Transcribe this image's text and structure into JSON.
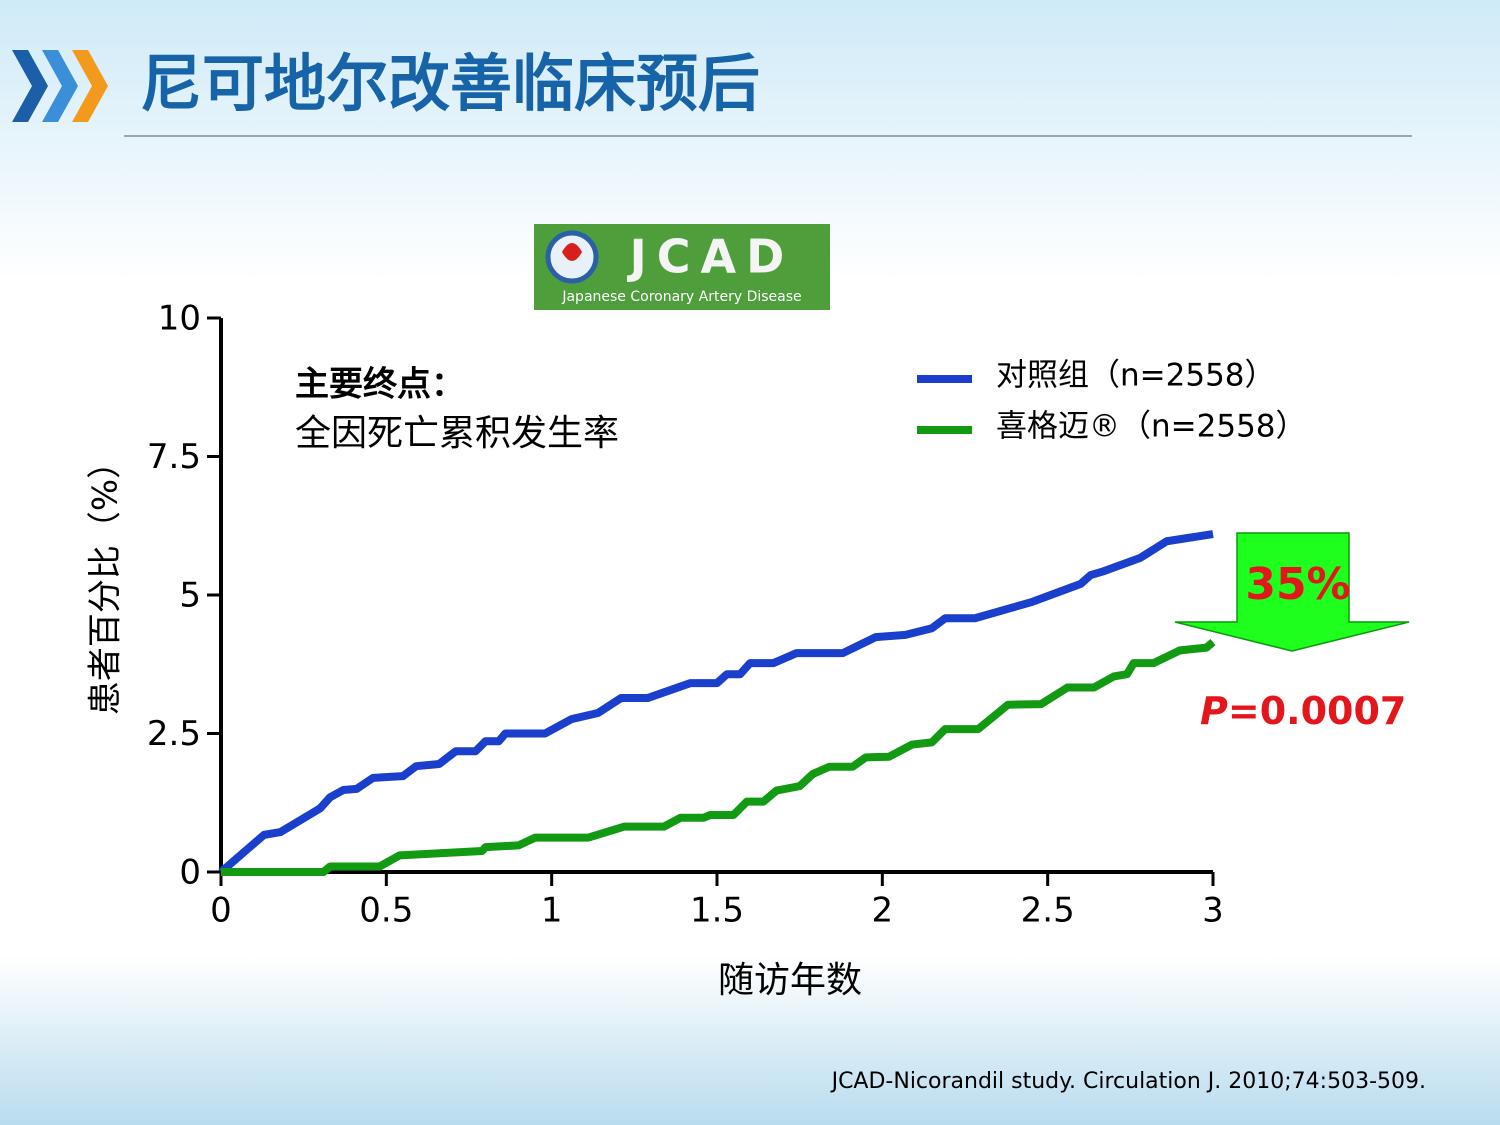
{
  "slide_title": "尼可地尔改善临床预后",
  "logo": {
    "name": "JCAD",
    "subtitle": "Japanese Coronary Artery Disease"
  },
  "citation": "JCAD-Nicorandil study. Circulation J. 2010;74:503-509.",
  "chart_data": {
    "type": "line",
    "xlabel": "随访年数",
    "ylabel": "患者百分比（%）",
    "annotations": {
      "endpoint_heading": "主要终点：",
      "endpoint_text": "全因死亡累积发生率",
      "reduction": "35%",
      "p_symbol": "P",
      "p_value": "=0.0007"
    },
    "xlim": [
      0,
      3
    ],
    "xticks": [
      0,
      0.5,
      1,
      1.5,
      2,
      2.5,
      3
    ],
    "ylim": [
      0,
      10
    ],
    "yticks": [
      0,
      2.5,
      5,
      7.5,
      10
    ],
    "series": [
      {
        "name": "对照组（n=2558）",
        "color": "#1a3fcc",
        "x": [
          0,
          0.13,
          0.18,
          0.3,
          0.33,
          0.37,
          0.41,
          0.46,
          0.55,
          0.59,
          0.66,
          0.71,
          0.77,
          0.8,
          0.84,
          0.86,
          0.98,
          1.06,
          1.14,
          1.21,
          1.29,
          1.42,
          1.5,
          1.53,
          1.57,
          1.6,
          1.67,
          1.74,
          1.88,
          1.98,
          2.07,
          2.15,
          2.19,
          2.28,
          2.45,
          2.6,
          2.63,
          2.67,
          2.78,
          2.86,
          3
        ],
        "values": [
          0,
          0.67,
          0.72,
          1.15,
          1.35,
          1.48,
          1.5,
          1.7,
          1.73,
          1.91,
          1.95,
          2.18,
          2.18,
          2.36,
          2.36,
          2.5,
          2.5,
          2.76,
          2.87,
          3.14,
          3.14,
          3.41,
          3.41,
          3.57,
          3.57,
          3.77,
          3.77,
          3.95,
          3.95,
          4.24,
          4.28,
          4.4,
          4.58,
          4.58,
          4.87,
          5.2,
          5.36,
          5.43,
          5.67,
          5.97,
          6.1
        ]
      },
      {
        "name": "喜格迈®（n=2558）",
        "color": "#139a13",
        "x": [
          0,
          0.31,
          0.33,
          0.48,
          0.54,
          0.79,
          0.8,
          0.9,
          0.95,
          1.11,
          1.22,
          1.34,
          1.39,
          1.46,
          1.48,
          1.55,
          1.59,
          1.64,
          1.68,
          1.75,
          1.79,
          1.84,
          1.91,
          1.95,
          2.02,
          2.09,
          2.15,
          2.19,
          2.29,
          2.38,
          2.48,
          2.56,
          2.64,
          2.7,
          2.74,
          2.76,
          2.82,
          2.9,
          2.98,
          3
        ],
        "values": [
          0,
          0,
          0.1,
          0.1,
          0.3,
          0.38,
          0.45,
          0.48,
          0.62,
          0.62,
          0.82,
          0.82,
          0.98,
          0.98,
          1.03,
          1.03,
          1.27,
          1.27,
          1.47,
          1.55,
          1.77,
          1.9,
          1.9,
          2.07,
          2.08,
          2.3,
          2.34,
          2.58,
          2.58,
          3.02,
          3.03,
          3.33,
          3.33,
          3.53,
          3.57,
          3.77,
          3.77,
          4.0,
          4.05,
          4.15
        ]
      }
    ]
  }
}
